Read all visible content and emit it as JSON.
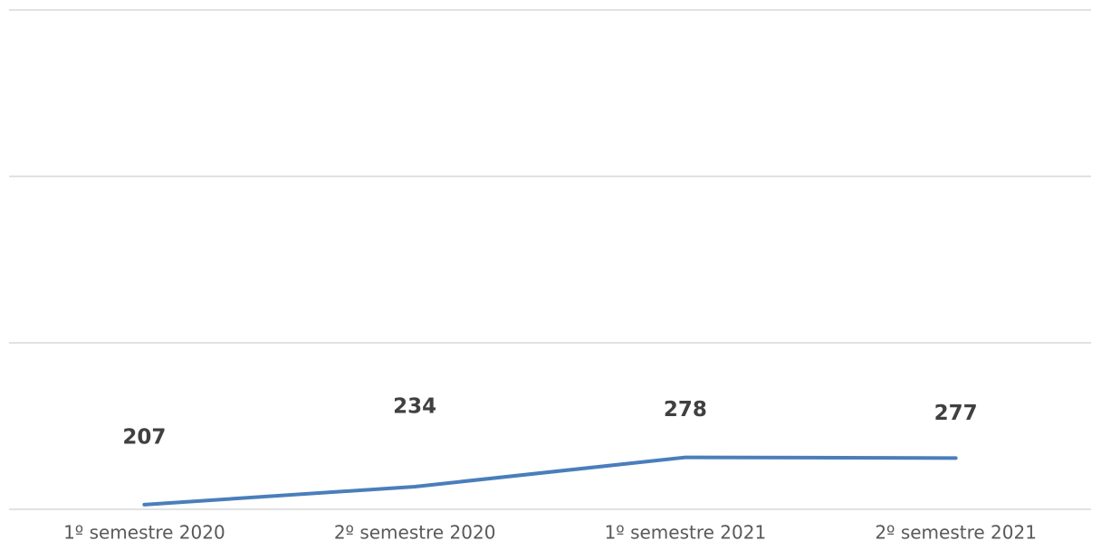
{
  "chart_data": {
    "type": "line",
    "categories": [
      "1º semestre 2020",
      "2º semestre 2020",
      "1º semestre 2021",
      "2º semestre 2021"
    ],
    "series": [
      {
        "color": "#4a7ebb",
        "values": [
          207,
          234,
          278,
          277
        ]
      }
    ],
    "ylim": [
      200,
      950
    ],
    "yticks": [
      200,
      450,
      700,
      950
    ],
    "grid": true
  }
}
